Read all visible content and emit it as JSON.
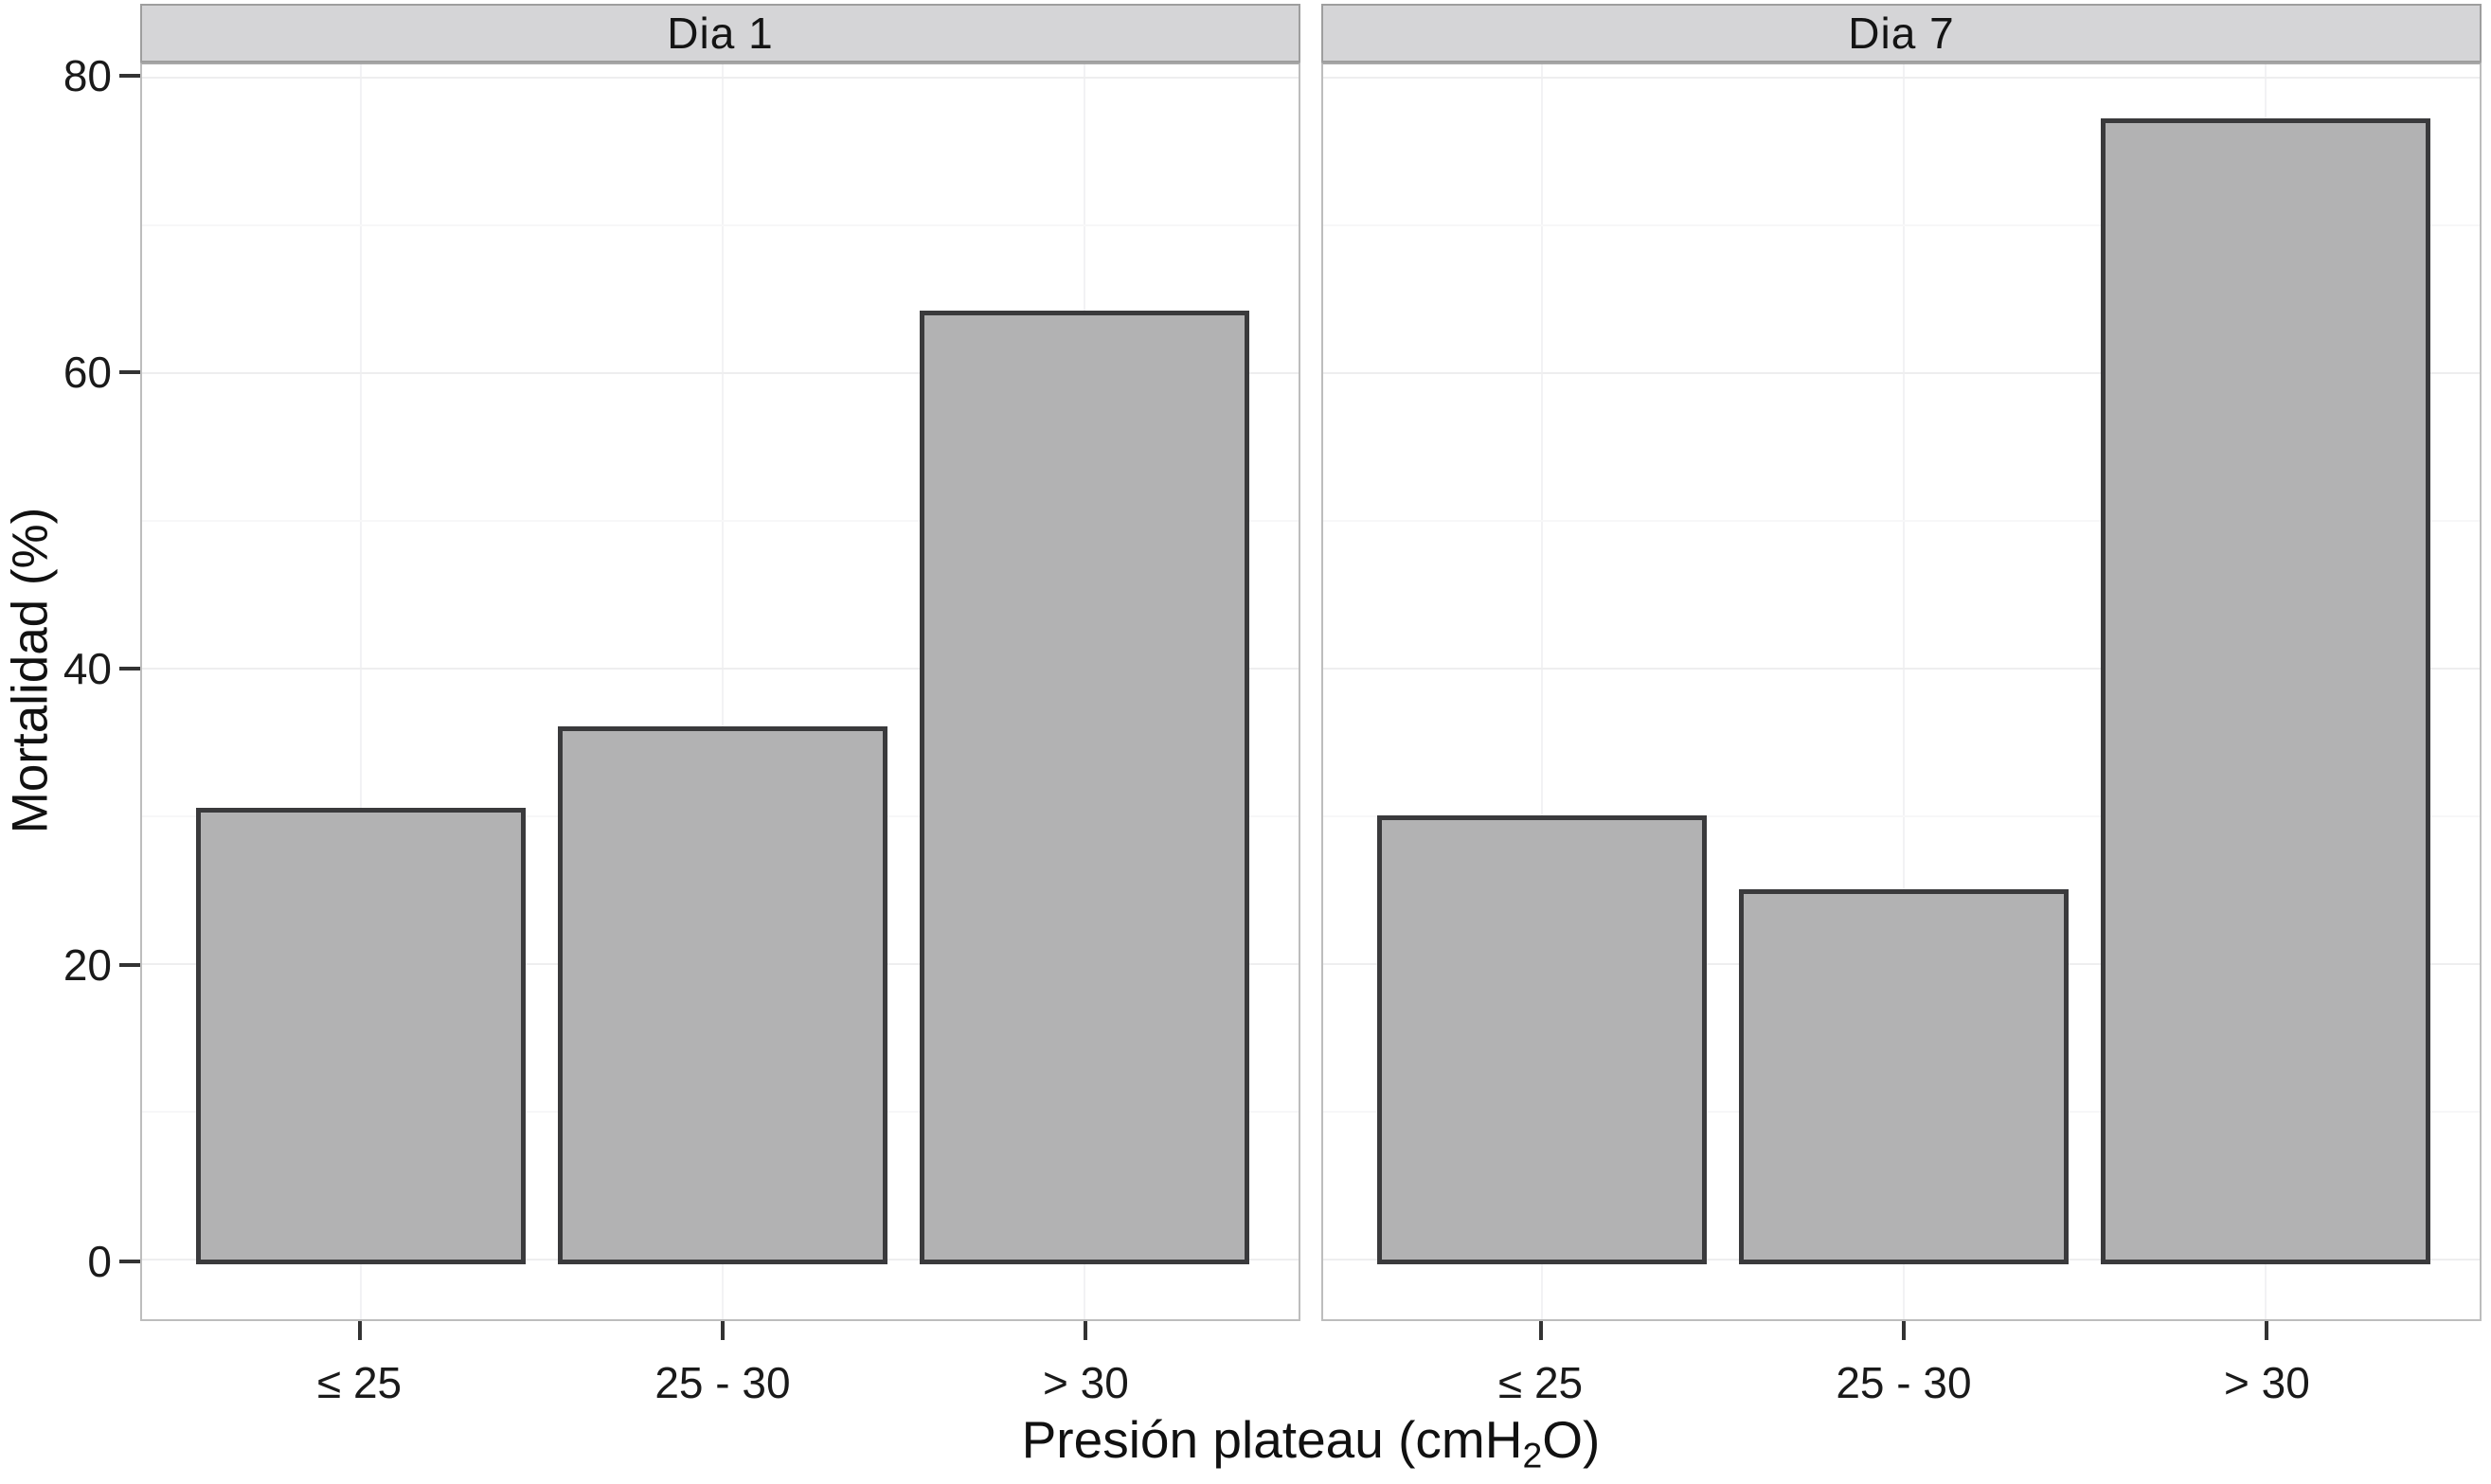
{
  "chart_data": {
    "type": "bar",
    "faceted": true,
    "facet_labels": [
      "Dia 1",
      "Dia 7"
    ],
    "categories": [
      "≤ 25",
      "25 - 30",
      "> 30"
    ],
    "series": [
      {
        "name": "Dia 1",
        "values": [
          30.5,
          36,
          64
        ]
      },
      {
        "name": "Dia 7",
        "values": [
          30,
          25,
          77
        ]
      }
    ],
    "xlabel": "Presión plateau (cmH2O)",
    "xlabel_parts": {
      "pre": "Presión plateau (cmH",
      "sub": "2",
      "post": "O)"
    },
    "ylabel": "Mortalidad (%)",
    "yticks": [
      0,
      20,
      40,
      60,
      80
    ],
    "yticks_minor": [
      10,
      30,
      50,
      70
    ],
    "ylim": [
      0,
      80
    ],
    "grid": "faint major and minor horizontal gridlines, faint vertical gridlines at category centers",
    "legend": "none",
    "colors": {
      "bar_fill": "#b2b2b3",
      "bar_border": "#3a3a3c",
      "strip_bg": "#d5d5d7",
      "panel_border": "#bdbdbd",
      "tick_mark": "#333333",
      "grid_major": "#eeeeef",
      "grid_minor": "#f7f7f8",
      "text": "#1a1a1a"
    }
  }
}
